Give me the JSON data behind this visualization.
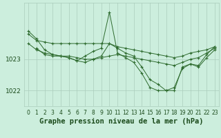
{
  "title": "Graphe pression niveau de la mer (hPa)",
  "bg_color": "#cceedd",
  "grid_color": "#aaccbb",
  "line_color": "#2d6a2d",
  "xlim": [
    -0.5,
    23.5
  ],
  "ylim": [
    1021.5,
    1024.8
  ],
  "yticks": [
    1022,
    1023
  ],
  "xticks": [
    0,
    1,
    2,
    3,
    4,
    5,
    6,
    7,
    8,
    9,
    10,
    11,
    12,
    13,
    14,
    15,
    16,
    17,
    18,
    19,
    20,
    21,
    22,
    23
  ],
  "series": [
    {
      "x": [
        0,
        1,
        2,
        3,
        4,
        5,
        6,
        7,
        8,
        9,
        10,
        11,
        12,
        13,
        14,
        15,
        16,
        17,
        18,
        19,
        20,
        21,
        22,
        23
      ],
      "y": [
        1023.8,
        1023.6,
        1023.55,
        1023.5,
        1023.5,
        1023.5,
        1023.5,
        1023.5,
        1023.5,
        1023.5,
        1023.5,
        1023.4,
        1023.35,
        1023.3,
        1023.25,
        1023.2,
        1023.15,
        1023.1,
        1023.05,
        1023.1,
        1023.2,
        1023.25,
        1023.3,
        1023.4
      ]
    },
    {
      "x": [
        0,
        1,
        2,
        3,
        4,
        5,
        6,
        7,
        8,
        9,
        10,
        11,
        12,
        13,
        14,
        15,
        16,
        17,
        18,
        19,
        20,
        21,
        22,
        23
      ],
      "y": [
        1023.9,
        1023.65,
        1023.3,
        1023.15,
        1023.1,
        1023.05,
        1022.95,
        1023.1,
        1023.25,
        1023.35,
        1024.5,
        1023.2,
        1023.05,
        1022.9,
        1022.55,
        1022.1,
        1022.0,
        1022.0,
        1022.1,
        1022.7,
        1022.85,
        1022.8,
        1023.15,
        1023.4
      ]
    },
    {
      "x": [
        1,
        2,
        3,
        4,
        5,
        6,
        7,
        8,
        9,
        10,
        11,
        12,
        13,
        14,
        15,
        16,
        17,
        18,
        19,
        20,
        21,
        22,
        23
      ],
      "y": [
        1023.35,
        1023.15,
        1023.1,
        1023.1,
        1023.05,
        1022.95,
        1022.9,
        1023.0,
        1023.1,
        1023.5,
        1023.35,
        1023.2,
        1023.1,
        1022.75,
        1022.35,
        1022.2,
        1022.0,
        1022.0,
        1022.75,
        1022.85,
        1022.75,
        1023.05,
        1023.3
      ]
    },
    {
      "x": [
        0,
        1,
        2,
        3,
        4,
        5,
        6,
        7,
        8,
        9,
        10,
        11,
        12,
        13,
        14,
        15,
        16,
        17,
        18,
        19,
        20,
        21,
        22,
        23
      ],
      "y": [
        1023.5,
        1023.3,
        1023.2,
        1023.15,
        1023.1,
        1023.1,
        1023.05,
        1023.0,
        1023.0,
        1023.05,
        1023.1,
        1023.15,
        1023.1,
        1023.05,
        1023.0,
        1022.95,
        1022.9,
        1022.85,
        1022.8,
        1022.9,
        1023.0,
        1023.05,
        1023.2,
        1023.35
      ]
    }
  ],
  "title_fontsize": 7.5,
  "tick_fontsize": 5.5,
  "label_color": "#1a4a1a"
}
